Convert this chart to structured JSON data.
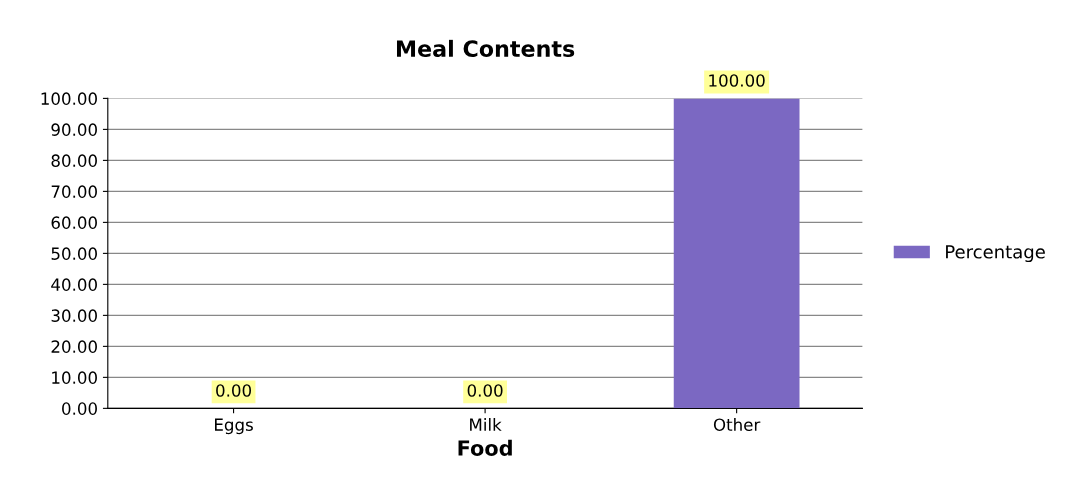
{
  "chart_data": {
    "type": "bar",
    "title": "Meal Contents",
    "xlabel": "Food",
    "categories": [
      "Eggs",
      "Milk",
      "Other"
    ],
    "series": [
      {
        "name": "Percentage",
        "color": "#7b68c2",
        "values": [
          0,
          0,
          100
        ],
        "value_labels": [
          "0.00",
          "0.00",
          "100.00"
        ]
      }
    ],
    "ylim": [
      0,
      100
    ],
    "yticks": [
      {
        "value": 0,
        "label": "0.00"
      },
      {
        "value": 10,
        "label": "10.00"
      },
      {
        "value": 20,
        "label": "20.00"
      },
      {
        "value": 30,
        "label": "30.00"
      },
      {
        "value": 40,
        "label": "40.00"
      },
      {
        "value": 50,
        "label": "50.00"
      },
      {
        "value": 60,
        "label": "60.00"
      },
      {
        "value": 70,
        "label": "70.00"
      },
      {
        "value": 80,
        "label": "80.00"
      },
      {
        "value": 90,
        "label": "90.00"
      },
      {
        "value": 100,
        "label": "100.00"
      }
    ],
    "grid": "y",
    "legend": "right"
  }
}
